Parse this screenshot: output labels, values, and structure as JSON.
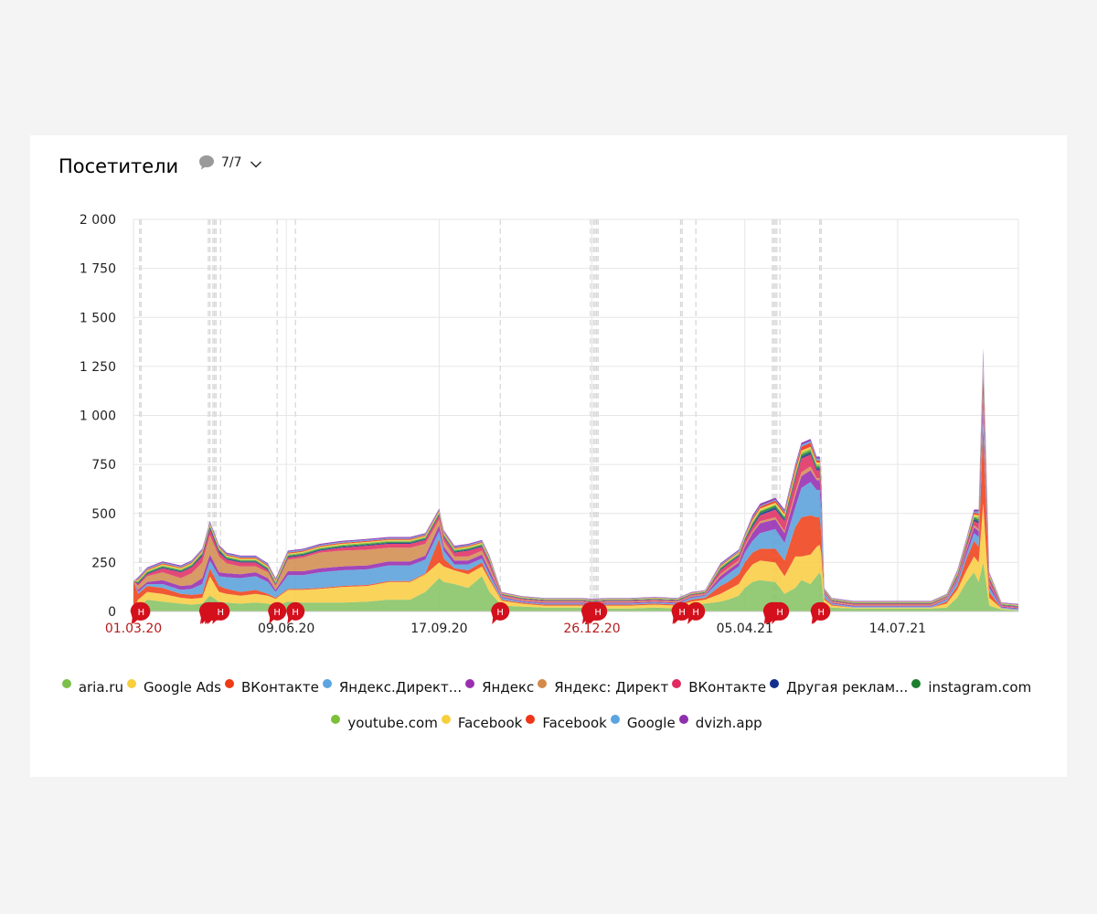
{
  "report": {
    "title": "Посетители",
    "annotations_toggle": {
      "label": "7/7",
      "icon": "speech-bubble-icon",
      "dropdown_icon": "chevron-down-icon"
    }
  },
  "chart_data": {
    "type": "area",
    "stacked": true,
    "ylim": [
      0,
      2000
    ],
    "y_ticks": [
      0,
      250,
      500,
      750,
      1000,
      1250,
      1500,
      1750,
      2000
    ],
    "y_tick_labels": [
      "0",
      "250",
      "500",
      "750",
      "1 000",
      "1 250",
      "1 500",
      "1 750",
      "2 000"
    ],
    "x_range": [
      "2020-03-01",
      "2021-10-01"
    ],
    "x_ticks": [
      {
        "date": "2020-03-01",
        "label": "01.03.20",
        "highlight": true
      },
      {
        "date": "2020-06-09",
        "label": "09.06.20",
        "highlight": false
      },
      {
        "date": "2020-09-17",
        "label": "17.09.20",
        "highlight": false
      },
      {
        "date": "2020-12-26",
        "label": "26.12.20",
        "highlight": true
      },
      {
        "date": "2021-04-05",
        "label": "05.04.21",
        "highlight": false
      },
      {
        "date": "2021-07-14",
        "label": "14.07.21",
        "highlight": false
      }
    ],
    "grid": true,
    "legend_position": "bottom",
    "annotation_marker_label": "Н",
    "annotation_dates": [
      "2020-03-05",
      "2020-03-06",
      "2020-04-19",
      "2020-04-20",
      "2020-04-22",
      "2020-04-23",
      "2020-04-24",
      "2020-04-27",
      "2020-06-03",
      "2020-06-15",
      "2020-10-27",
      "2020-12-25",
      "2020-12-27",
      "2020-12-28",
      "2020-12-29",
      "2020-12-30",
      "2021-02-22",
      "2021-02-23",
      "2021-03-04",
      "2021-04-23",
      "2021-04-24",
      "2021-04-25",
      "2021-04-26",
      "2021-04-28",
      "2021-05-24",
      "2021-05-25"
    ],
    "x_sample_dates": [
      "2020-03-01",
      "2020-03-04",
      "2020-03-10",
      "2020-03-20",
      "2020-04-01",
      "2020-04-08",
      "2020-04-15",
      "2020-04-20",
      "2020-04-26",
      "2020-05-01",
      "2020-05-10",
      "2020-05-20",
      "2020-05-28",
      "2020-06-02",
      "2020-06-10",
      "2020-06-20",
      "2020-07-01",
      "2020-07-15",
      "2020-08-01",
      "2020-08-15",
      "2020-08-29",
      "2020-09-08",
      "2020-09-17",
      "2020-09-20",
      "2020-09-27",
      "2020-10-06",
      "2020-10-15",
      "2020-10-20",
      "2020-10-28",
      "2020-11-10",
      "2020-11-25",
      "2020-12-05",
      "2020-12-20",
      "2020-12-26",
      "2021-01-05",
      "2021-01-20",
      "2021-02-05",
      "2021-02-20",
      "2021-03-01",
      "2021-03-10",
      "2021-03-20",
      "2021-03-25",
      "2021-04-01",
      "2021-04-05",
      "2021-04-10",
      "2021-04-15",
      "2021-04-25",
      "2021-05-01",
      "2021-05-08",
      "2021-05-12",
      "2021-05-18",
      "2021-05-22",
      "2021-05-24",
      "2021-05-25",
      "2021-05-27",
      "2021-06-01",
      "2021-06-15",
      "2021-07-01",
      "2021-07-14",
      "2021-07-25",
      "2021-08-05",
      "2021-08-15",
      "2021-08-22",
      "2021-08-28",
      "2021-09-02",
      "2021-09-05",
      "2021-09-08",
      "2021-09-12",
      "2021-09-20",
      "2021-10-01"
    ],
    "series": [
      {
        "name": "aria.ru",
        "color": "#8cc56a",
        "values": [
          5,
          20,
          60,
          50,
          40,
          35,
          40,
          80,
          50,
          45,
          40,
          45,
          40,
          30,
          50,
          45,
          45,
          45,
          50,
          60,
          60,
          100,
          170,
          150,
          140,
          120,
          180,
          100,
          30,
          25,
          20,
          20,
          20,
          15,
          15,
          15,
          20,
          15,
          30,
          40,
          50,
          60,
          80,
          120,
          150,
          160,
          150,
          90,
          120,
          160,
          140,
          180,
          200,
          180,
          30,
          20,
          15,
          15,
          15,
          15,
          15,
          20,
          70,
          150,
          200,
          150,
          250,
          30,
          10,
          5
        ]
      },
      {
        "name": "Google Ads",
        "color": "#f8cf4c",
        "values": [
          0,
          40,
          40,
          40,
          30,
          30,
          30,
          100,
          50,
          45,
          40,
          45,
          40,
          35,
          60,
          65,
          70,
          80,
          80,
          90,
          90,
          90,
          80,
          80,
          70,
          70,
          50,
          60,
          25,
          15,
          10,
          10,
          10,
          10,
          15,
          15,
          15,
          15,
          20,
          20,
          40,
          50,
          60,
          70,
          90,
          100,
          100,
          90,
          160,
          120,
          150,
          150,
          140,
          120,
          30,
          10,
          5,
          5,
          5,
          5,
          5,
          20,
          40,
          60,
          80,
          100,
          300,
          40,
          5,
          2
        ]
      },
      {
        "name": "ВКонтакте",
        "color": "#f04a24",
        "values": [
          150,
          30,
          30,
          30,
          20,
          20,
          20,
          40,
          30,
          25,
          20,
          20,
          10,
          5,
          5,
          5,
          5,
          5,
          5,
          5,
          5,
          5,
          120,
          40,
          10,
          20,
          20,
          10,
          5,
          5,
          5,
          5,
          5,
          5,
          5,
          5,
          5,
          5,
          10,
          10,
          40,
          40,
          50,
          60,
          60,
          60,
          70,
          80,
          150,
          200,
          200,
          150,
          140,
          100,
          10,
          5,
          0,
          0,
          0,
          0,
          0,
          10,
          20,
          60,
          80,
          80,
          400,
          30,
          0,
          0
        ]
      },
      {
        "name": "Яндекс.Директ: Не определено",
        "color": "#62a5dc",
        "values": [
          0,
          10,
          10,
          20,
          20,
          30,
          50,
          40,
          50,
          60,
          70,
          70,
          60,
          30,
          70,
          70,
          80,
          80,
          80,
          80,
          80,
          70,
          40,
          40,
          20,
          30,
          20,
          20,
          10,
          5,
          5,
          5,
          5,
          5,
          5,
          5,
          5,
          5,
          10,
          10,
          30,
          40,
          40,
          50,
          60,
          80,
          100,
          90,
          100,
          150,
          170,
          140,
          140,
          120,
          20,
          5,
          5,
          5,
          5,
          5,
          5,
          10,
          20,
          20,
          40,
          50,
          100,
          20,
          5,
          5
        ]
      },
      {
        "name": "Яндекс",
        "color": "#9a36b5",
        "values": [
          0,
          10,
          10,
          20,
          20,
          20,
          30,
          30,
          20,
          20,
          20,
          20,
          20,
          10,
          20,
          20,
          20,
          20,
          20,
          20,
          20,
          20,
          30,
          20,
          20,
          20,
          20,
          20,
          5,
          5,
          5,
          5,
          5,
          5,
          5,
          5,
          5,
          5,
          5,
          5,
          20,
          20,
          20,
          30,
          40,
          50,
          50,
          50,
          60,
          60,
          60,
          50,
          50,
          60,
          5,
          5,
          5,
          5,
          5,
          5,
          5,
          5,
          10,
          20,
          30,
          30,
          50,
          20,
          5,
          5
        ]
      },
      {
        "name": "Яндекс: Директ",
        "color": "#d49258",
        "values": [
          0,
          20,
          30,
          40,
          40,
          60,
          80,
          100,
          80,
          50,
          40,
          30,
          30,
          20,
          60,
          70,
          80,
          80,
          80,
          70,
          70,
          60,
          30,
          30,
          20,
          20,
          20,
          20,
          5,
          5,
          5,
          5,
          5,
          5,
          5,
          5,
          5,
          5,
          5,
          5,
          10,
          10,
          10,
          10,
          10,
          10,
          10,
          10,
          20,
          20,
          20,
          10,
          10,
          10,
          5,
          5,
          5,
          5,
          5,
          5,
          5,
          5,
          5,
          10,
          10,
          10,
          10,
          5,
          2,
          2
        ]
      },
      {
        "name": "ВКонтакте",
        "color": "#e23a6a",
        "values": [
          0,
          10,
          10,
          20,
          30,
          30,
          30,
          30,
          20,
          20,
          20,
          20,
          10,
          5,
          10,
          10,
          10,
          15,
          20,
          20,
          20,
          20,
          20,
          20,
          20,
          30,
          20,
          20,
          5,
          5,
          5,
          5,
          5,
          5,
          5,
          5,
          5,
          5,
          5,
          5,
          20,
          20,
          20,
          20,
          20,
          30,
          40,
          50,
          60,
          70,
          60,
          40,
          40,
          40,
          5,
          5,
          5,
          5,
          5,
          5,
          5,
          5,
          10,
          20,
          20,
          30,
          80,
          20,
          5,
          5
        ]
      },
      {
        "name": "Другая реклама: определено по меткам",
        "color": "#1e3e8e",
        "values": [
          0,
          5,
          5,
          5,
          5,
          5,
          10,
          10,
          10,
          5,
          5,
          5,
          5,
          5,
          5,
          5,
          5,
          5,
          5,
          5,
          5,
          5,
          5,
          5,
          5,
          5,
          5,
          5,
          2,
          2,
          2,
          2,
          2,
          2,
          2,
          2,
          2,
          2,
          2,
          2,
          5,
          5,
          5,
          5,
          10,
          10,
          10,
          10,
          10,
          10,
          10,
          10,
          10,
          10,
          2,
          2,
          2,
          2,
          2,
          2,
          2,
          2,
          5,
          5,
          10,
          10,
          20,
          5,
          2,
          2
        ]
      },
      {
        "name": "instagram.com",
        "color": "#24843a",
        "values": [
          0,
          5,
          5,
          5,
          5,
          5,
          5,
          5,
          5,
          5,
          5,
          5,
          5,
          5,
          5,
          5,
          5,
          5,
          5,
          5,
          5,
          5,
          5,
          5,
          5,
          5,
          5,
          5,
          2,
          2,
          2,
          2,
          2,
          2,
          2,
          2,
          2,
          2,
          2,
          2,
          5,
          5,
          5,
          5,
          10,
          10,
          10,
          10,
          10,
          10,
          10,
          10,
          10,
          10,
          2,
          2,
          2,
          2,
          2,
          2,
          2,
          2,
          5,
          5,
          10,
          10,
          20,
          5,
          2,
          2
        ]
      },
      {
        "name": "youtube.com",
        "color": "#7fbf3f",
        "values": [
          0,
          5,
          5,
          5,
          5,
          5,
          5,
          5,
          5,
          5,
          5,
          5,
          5,
          5,
          5,
          5,
          5,
          5,
          5,
          5,
          5,
          5,
          5,
          5,
          5,
          5,
          5,
          5,
          2,
          2,
          2,
          2,
          2,
          2,
          2,
          2,
          2,
          2,
          2,
          2,
          5,
          5,
          5,
          5,
          5,
          5,
          5,
          5,
          10,
          10,
          10,
          10,
          10,
          10,
          2,
          2,
          2,
          2,
          2,
          2,
          2,
          2,
          5,
          5,
          5,
          10,
          20,
          5,
          2,
          2
        ]
      },
      {
        "name": "Facebook",
        "color": "#f6d043",
        "values": [
          0,
          5,
          5,
          5,
          5,
          5,
          5,
          5,
          5,
          5,
          5,
          5,
          5,
          5,
          5,
          5,
          5,
          5,
          5,
          5,
          5,
          5,
          5,
          5,
          5,
          5,
          5,
          5,
          2,
          2,
          2,
          2,
          2,
          2,
          2,
          2,
          2,
          2,
          2,
          2,
          5,
          5,
          5,
          5,
          10,
          10,
          10,
          10,
          10,
          10,
          10,
          10,
          10,
          10,
          2,
          2,
          2,
          2,
          2,
          2,
          2,
          2,
          5,
          5,
          10,
          10,
          20,
          5,
          2,
          2
        ]
      },
      {
        "name": "Facebook",
        "color": "#ef3b1f",
        "values": [
          0,
          5,
          5,
          5,
          5,
          5,
          5,
          5,
          5,
          5,
          5,
          5,
          5,
          5,
          5,
          5,
          5,
          5,
          5,
          5,
          5,
          5,
          5,
          5,
          5,
          5,
          5,
          5,
          2,
          2,
          2,
          2,
          2,
          2,
          2,
          2,
          2,
          2,
          2,
          2,
          5,
          5,
          5,
          5,
          10,
          10,
          10,
          10,
          20,
          20,
          20,
          10,
          10,
          10,
          2,
          2,
          2,
          2,
          2,
          2,
          2,
          2,
          5,
          5,
          10,
          10,
          20,
          5,
          2,
          2
        ]
      },
      {
        "name": "Google",
        "color": "#5aa4e1",
        "values": [
          0,
          5,
          5,
          5,
          5,
          5,
          5,
          5,
          5,
          5,
          5,
          5,
          5,
          5,
          5,
          5,
          5,
          5,
          5,
          5,
          5,
          5,
          5,
          5,
          5,
          5,
          5,
          5,
          2,
          2,
          2,
          2,
          2,
          2,
          2,
          2,
          2,
          2,
          2,
          2,
          5,
          5,
          5,
          5,
          5,
          5,
          5,
          5,
          10,
          10,
          10,
          10,
          10,
          10,
          2,
          2,
          2,
          2,
          2,
          2,
          2,
          2,
          5,
          5,
          5,
          10,
          20,
          5,
          2,
          2
        ]
      },
      {
        "name": "dvizh.app",
        "color": "#8e2fae",
        "values": [
          0,
          5,
          5,
          5,
          5,
          5,
          5,
          5,
          5,
          5,
          5,
          5,
          5,
          5,
          5,
          5,
          5,
          5,
          5,
          5,
          5,
          5,
          5,
          5,
          5,
          5,
          5,
          5,
          2,
          2,
          2,
          2,
          2,
          2,
          2,
          2,
          2,
          2,
          2,
          2,
          5,
          5,
          5,
          5,
          10,
          10,
          10,
          10,
          10,
          10,
          10,
          10,
          10,
          10,
          2,
          2,
          2,
          2,
          2,
          2,
          2,
          2,
          5,
          5,
          10,
          10,
          30,
          5,
          2,
          2
        ]
      }
    ]
  },
  "legend": {
    "rows": [
      [
        {
          "label": "aria.ru",
          "color": "#7cbf4a"
        },
        {
          "label": "Google Ads",
          "color": "#f7ce3c"
        },
        {
          "label": "ВКонтакте",
          "color": "#f03a14"
        },
        {
          "label": "Яндекс.Директ...",
          "color": "#5aa4e1"
        },
        {
          "label": "Яндекс",
          "color": "#9a2fb0"
        },
        {
          "label": "Яндекс: Директ",
          "color": "#d48a4c"
        },
        {
          "label": "ВКонтакте",
          "color": "#e22a60"
        },
        {
          "label": "Другая реклам...",
          "color": "#132f8e"
        },
        {
          "label": "instagram.com",
          "color": "#1c7f30"
        }
      ],
      [
        {
          "label": "youtube.com",
          "color": "#7cbf3a"
        },
        {
          "label": "Facebook",
          "color": "#f7ce3c"
        },
        {
          "label": "Facebook",
          "color": "#ee3518"
        },
        {
          "label": "Google",
          "color": "#5aa4e1"
        },
        {
          "label": "dvizh.app",
          "color": "#8e2fae"
        }
      ]
    ]
  },
  "colors": {
    "grid": "#e6e6e6",
    "annotation_line": "#d8d8d8",
    "annotation_marker": "#d3101c",
    "highlight_label": "#b51d1d",
    "axis_text": "#222222"
  }
}
